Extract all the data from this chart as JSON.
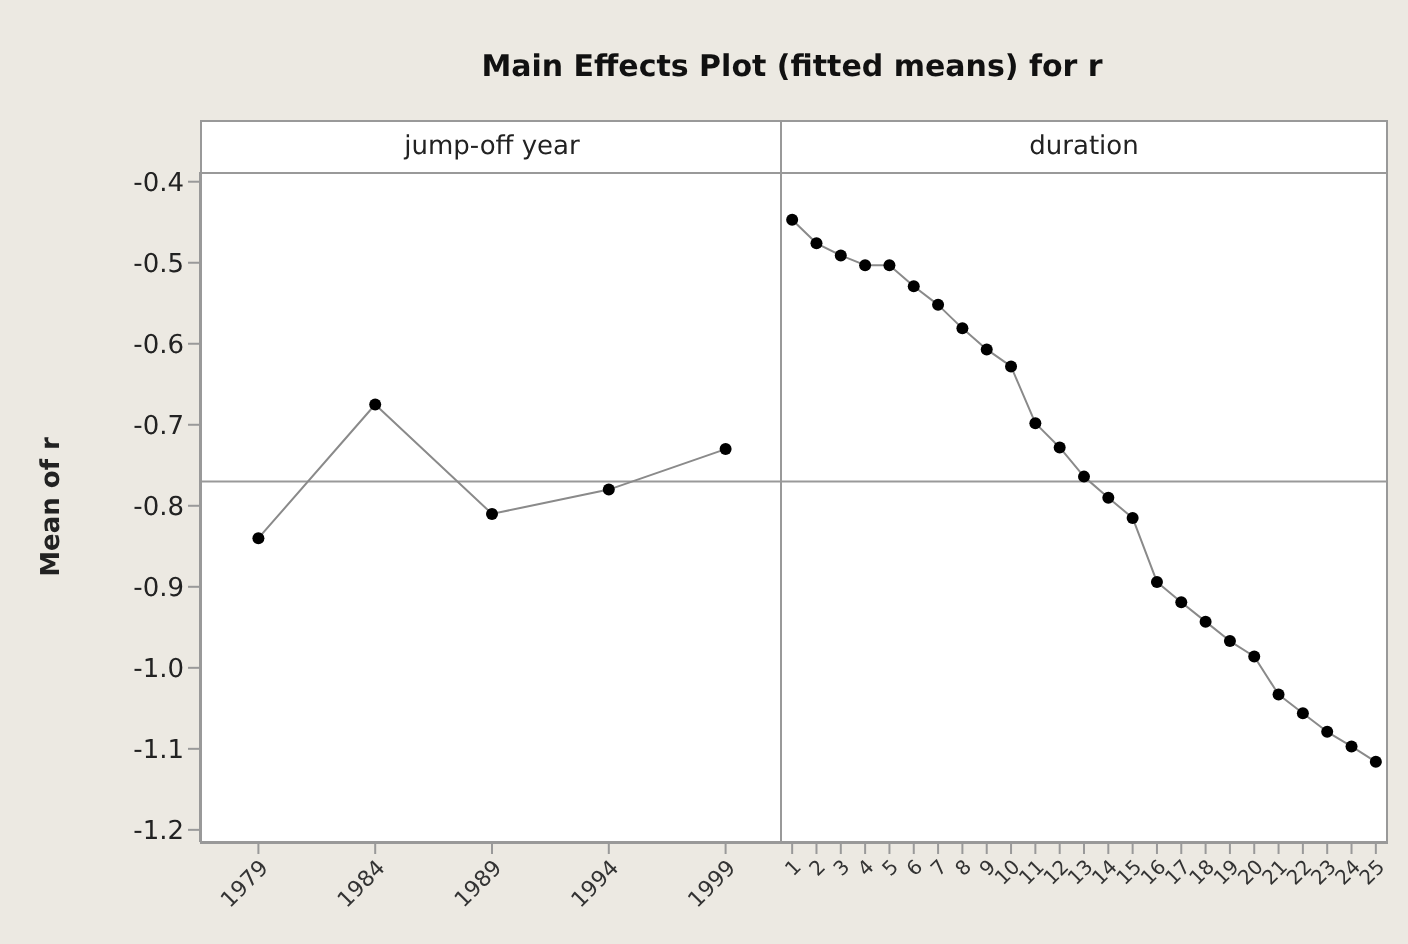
{
  "chart_data": [
    {
      "type": "line",
      "title": "Main Effects Plot (fitted means) for r",
      "subtitle": "jump-off year",
      "ylabel": "Mean of r",
      "categories": [
        "1979",
        "1984",
        "1989",
        "1994",
        "1999"
      ],
      "series": [
        {
          "color": "#000000",
          "values": [
            -0.84,
            -0.675,
            -0.81,
            -0.78,
            -0.73
          ]
        }
      ],
      "ylim": [
        -1.215,
        -0.388
      ],
      "yticks": [
        -0.4,
        -0.5,
        -0.6,
        -0.7,
        -0.8,
        -0.9,
        {
          "value": -1.0,
          "label": "-1.0"
        },
        -1.1,
        -1.2
      ],
      "ref_lines": [
        {
          "axis": "y",
          "value": -0.77
        }
      ],
      "marker": "circle"
    },
    {
      "type": "line",
      "subtitle": "duration",
      "categories": [
        "1",
        "2",
        "3",
        "4",
        "5",
        "6",
        "7",
        "8",
        "9",
        "10",
        "11",
        "12",
        "13",
        "14",
        "15",
        "16",
        "17",
        "18",
        "19",
        "20",
        "21",
        "22",
        "23",
        "24",
        "25"
      ],
      "series": [
        {
          "color": "#000000",
          "values": [
            -0.447,
            -0.476,
            -0.491,
            -0.503,
            -0.503,
            -0.529,
            -0.552,
            -0.581,
            -0.607,
            -0.628,
            -0.698,
            -0.728,
            -0.764,
            -0.79,
            -0.815,
            -0.894,
            -0.919,
            -0.943,
            -0.967,
            -0.986,
            -1.033,
            -1.056,
            -1.079,
            -1.097,
            -1.116
          ]
        }
      ],
      "ylim": [
        -1.215,
        -0.388
      ],
      "ref_lines": [
        {
          "axis": "y",
          "value": -0.77
        }
      ],
      "marker": "circle",
      "tick_labels": "x"
    }
  ]
}
